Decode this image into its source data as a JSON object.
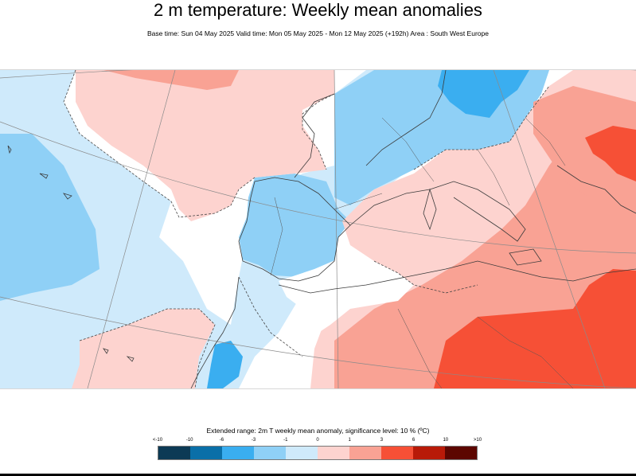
{
  "header": {
    "title": "2 m temperature: Weekly mean anomalies",
    "subtitle": "Base time: Sun 04 May 2025 Valid time: Mon 05 May 2025 - Mon 12 May 2025 (+192h) Area : South West Europe"
  },
  "map": {
    "area": "South West Europe",
    "variable": "2m T weekly mean anomaly"
  },
  "legend": {
    "title": "Extended range: 2m T weekly mean anomaly, significance level: 10 % (ºC)",
    "ticks": [
      "<-10",
      "-10",
      "-6",
      "-3",
      "-1",
      "0",
      "1",
      "3",
      "6",
      "10",
      ">10"
    ],
    "colors": [
      "#0c3a55",
      "#0a6fa8",
      "#3aaef0",
      "#8fd0f6",
      "#cfeafb",
      "#fdd3cf",
      "#f9a294",
      "#f65036",
      "#b81a08",
      "#5c0600"
    ]
  },
  "colors": {
    "no_signal": "#ffffff",
    "ocean_light_blue": "#cfeafb",
    "blue": "#8fd0f6",
    "mid_blue": "#3aaef0",
    "light_pink": "#fdd3cf",
    "salmon": "#f9a294",
    "red": "#f65036",
    "coastline": "#3b3b3b",
    "graticule": "#8a8a8a"
  }
}
